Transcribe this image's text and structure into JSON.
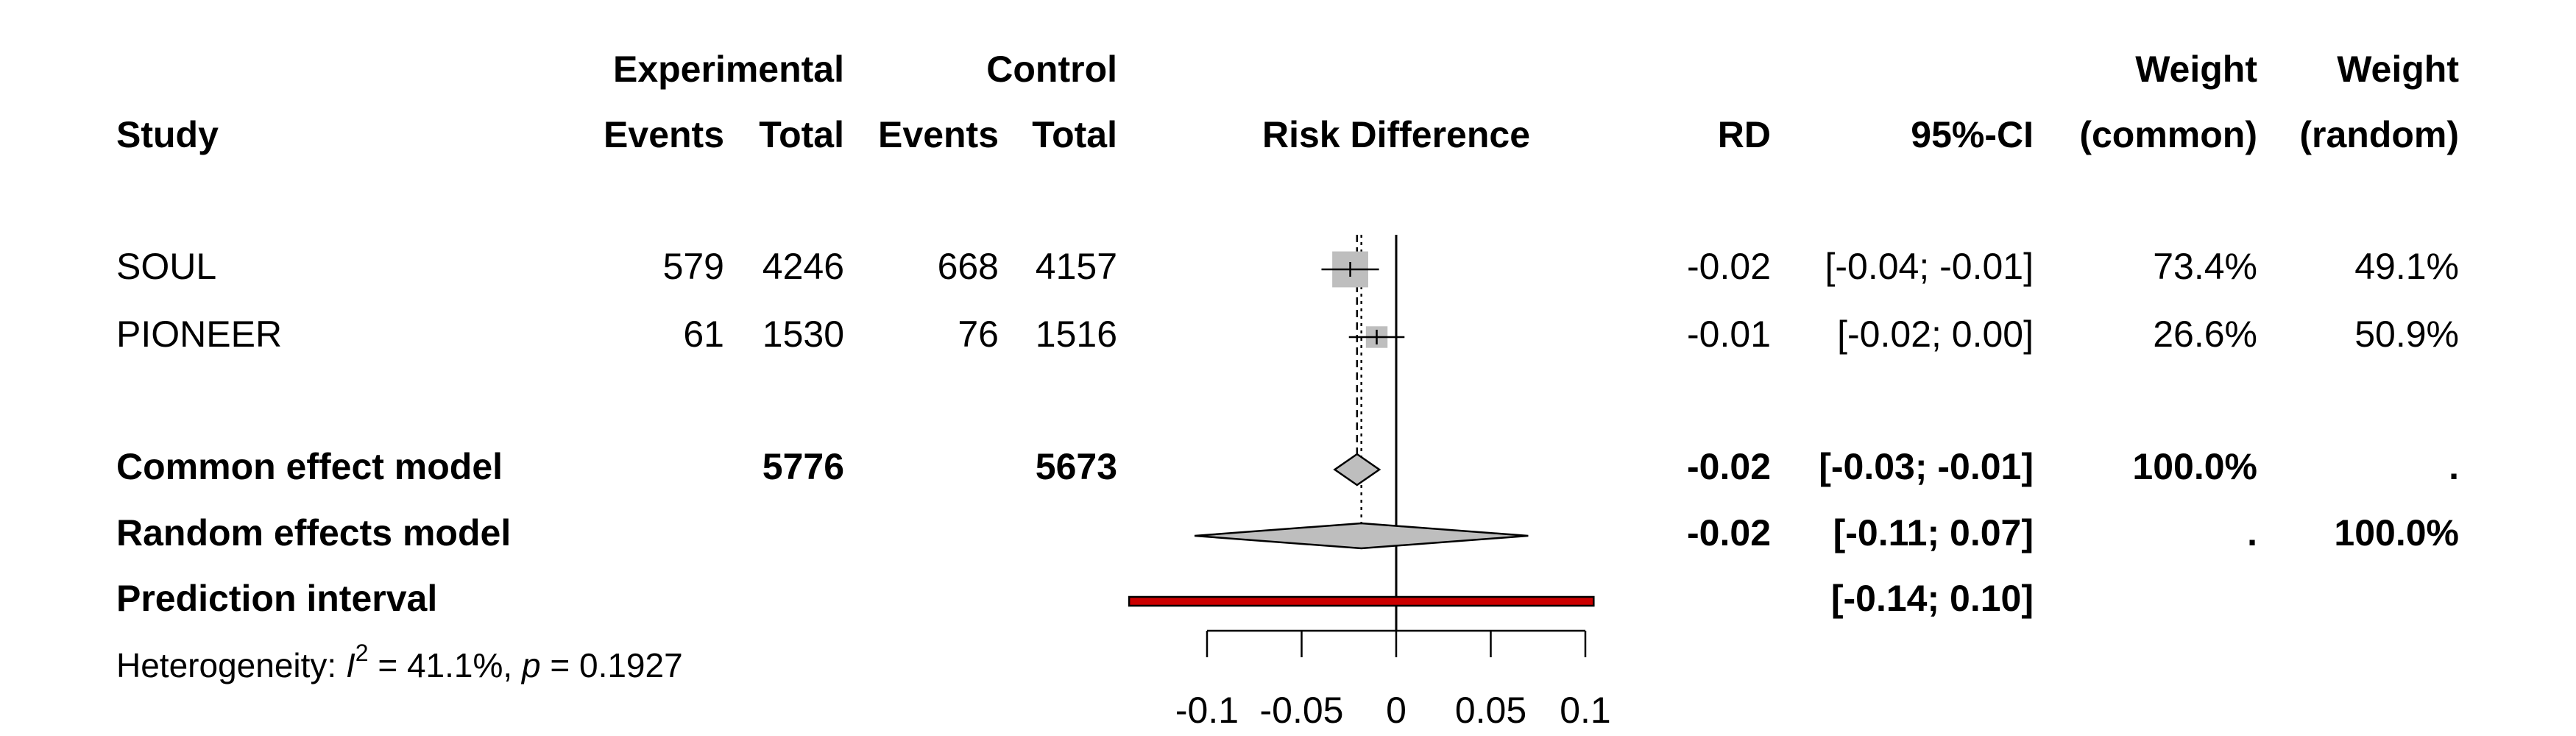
{
  "chart_data": {
    "type": "forest",
    "header": {
      "experimental": "Experimental",
      "control": "Control",
      "weight_1": "Weight",
      "weight_2": "Weight",
      "study": "Study",
      "exp_events": "Events",
      "exp_total": "Total",
      "ctrl_events": "Events",
      "ctrl_total": "Total",
      "plot": "Risk Difference",
      "rd": "RD",
      "ci": "95%-CI",
      "weight_common": "(common)",
      "weight_random": "(random)"
    },
    "studies": [
      {
        "name": "SOUL",
        "exp_events": 579,
        "exp_total": 4246,
        "ctrl_events": 668,
        "ctrl_total": 4157,
        "rd": -0.0243,
        "rd_label": "-0.02",
        "ci": [
          -0.0395,
          -0.0091
        ],
        "ci_label": "[-0.04; -0.01]",
        "weight_common": 73.4,
        "weight_common_label": "73.4%",
        "weight_random_label": "49.1%"
      },
      {
        "name": "PIONEER",
        "exp_events": 61,
        "exp_total": 1530,
        "ctrl_events": 76,
        "ctrl_total": 1516,
        "rd": -0.0103,
        "rd_label": "-0.01",
        "ci": [
          -0.025,
          0.0044
        ],
        "ci_label": "[-0.02; 0.00]",
        "weight_common": 26.6,
        "weight_common_label": "26.6%",
        "weight_random_label": "50.9%"
      }
    ],
    "common": {
      "name": "Common effect model",
      "exp_total": 5776,
      "ctrl_total": 5673,
      "rd": -0.0207,
      "rd_label": "-0.02",
      "ci": [
        -0.0325,
        -0.0089
      ],
      "ci_label": "[-0.03; -0.01]",
      "weight_common_label": "100.0%",
      "weight_random_label": "."
    },
    "random": {
      "name": "Random effects model",
      "rd": -0.0184,
      "rd_label": "-0.02",
      "ci": [
        -0.1066,
        0.0698
      ],
      "ci_label": "[-0.11; 0.07]",
      "weight_common_label": ".",
      "weight_random_label": "100.0%"
    },
    "prediction": {
      "name": "Prediction interval",
      "ci": [
        -0.1412,
        0.1044
      ],
      "ci_label": "[-0.14; 0.10]"
    },
    "heterogeneity": [
      "Heterogeneity: ",
      "I",
      "2",
      " = 41.1%, ",
      "p",
      " = 0.1927"
    ],
    "xlim": [
      -0.1,
      0.1
    ],
    "xticks": [
      -0.1,
      -0.05,
      0,
      0.05,
      0.1
    ],
    "square_color": "#bebebe",
    "diamond_color": "#bebebe",
    "prediction_color": "#cc0000"
  }
}
